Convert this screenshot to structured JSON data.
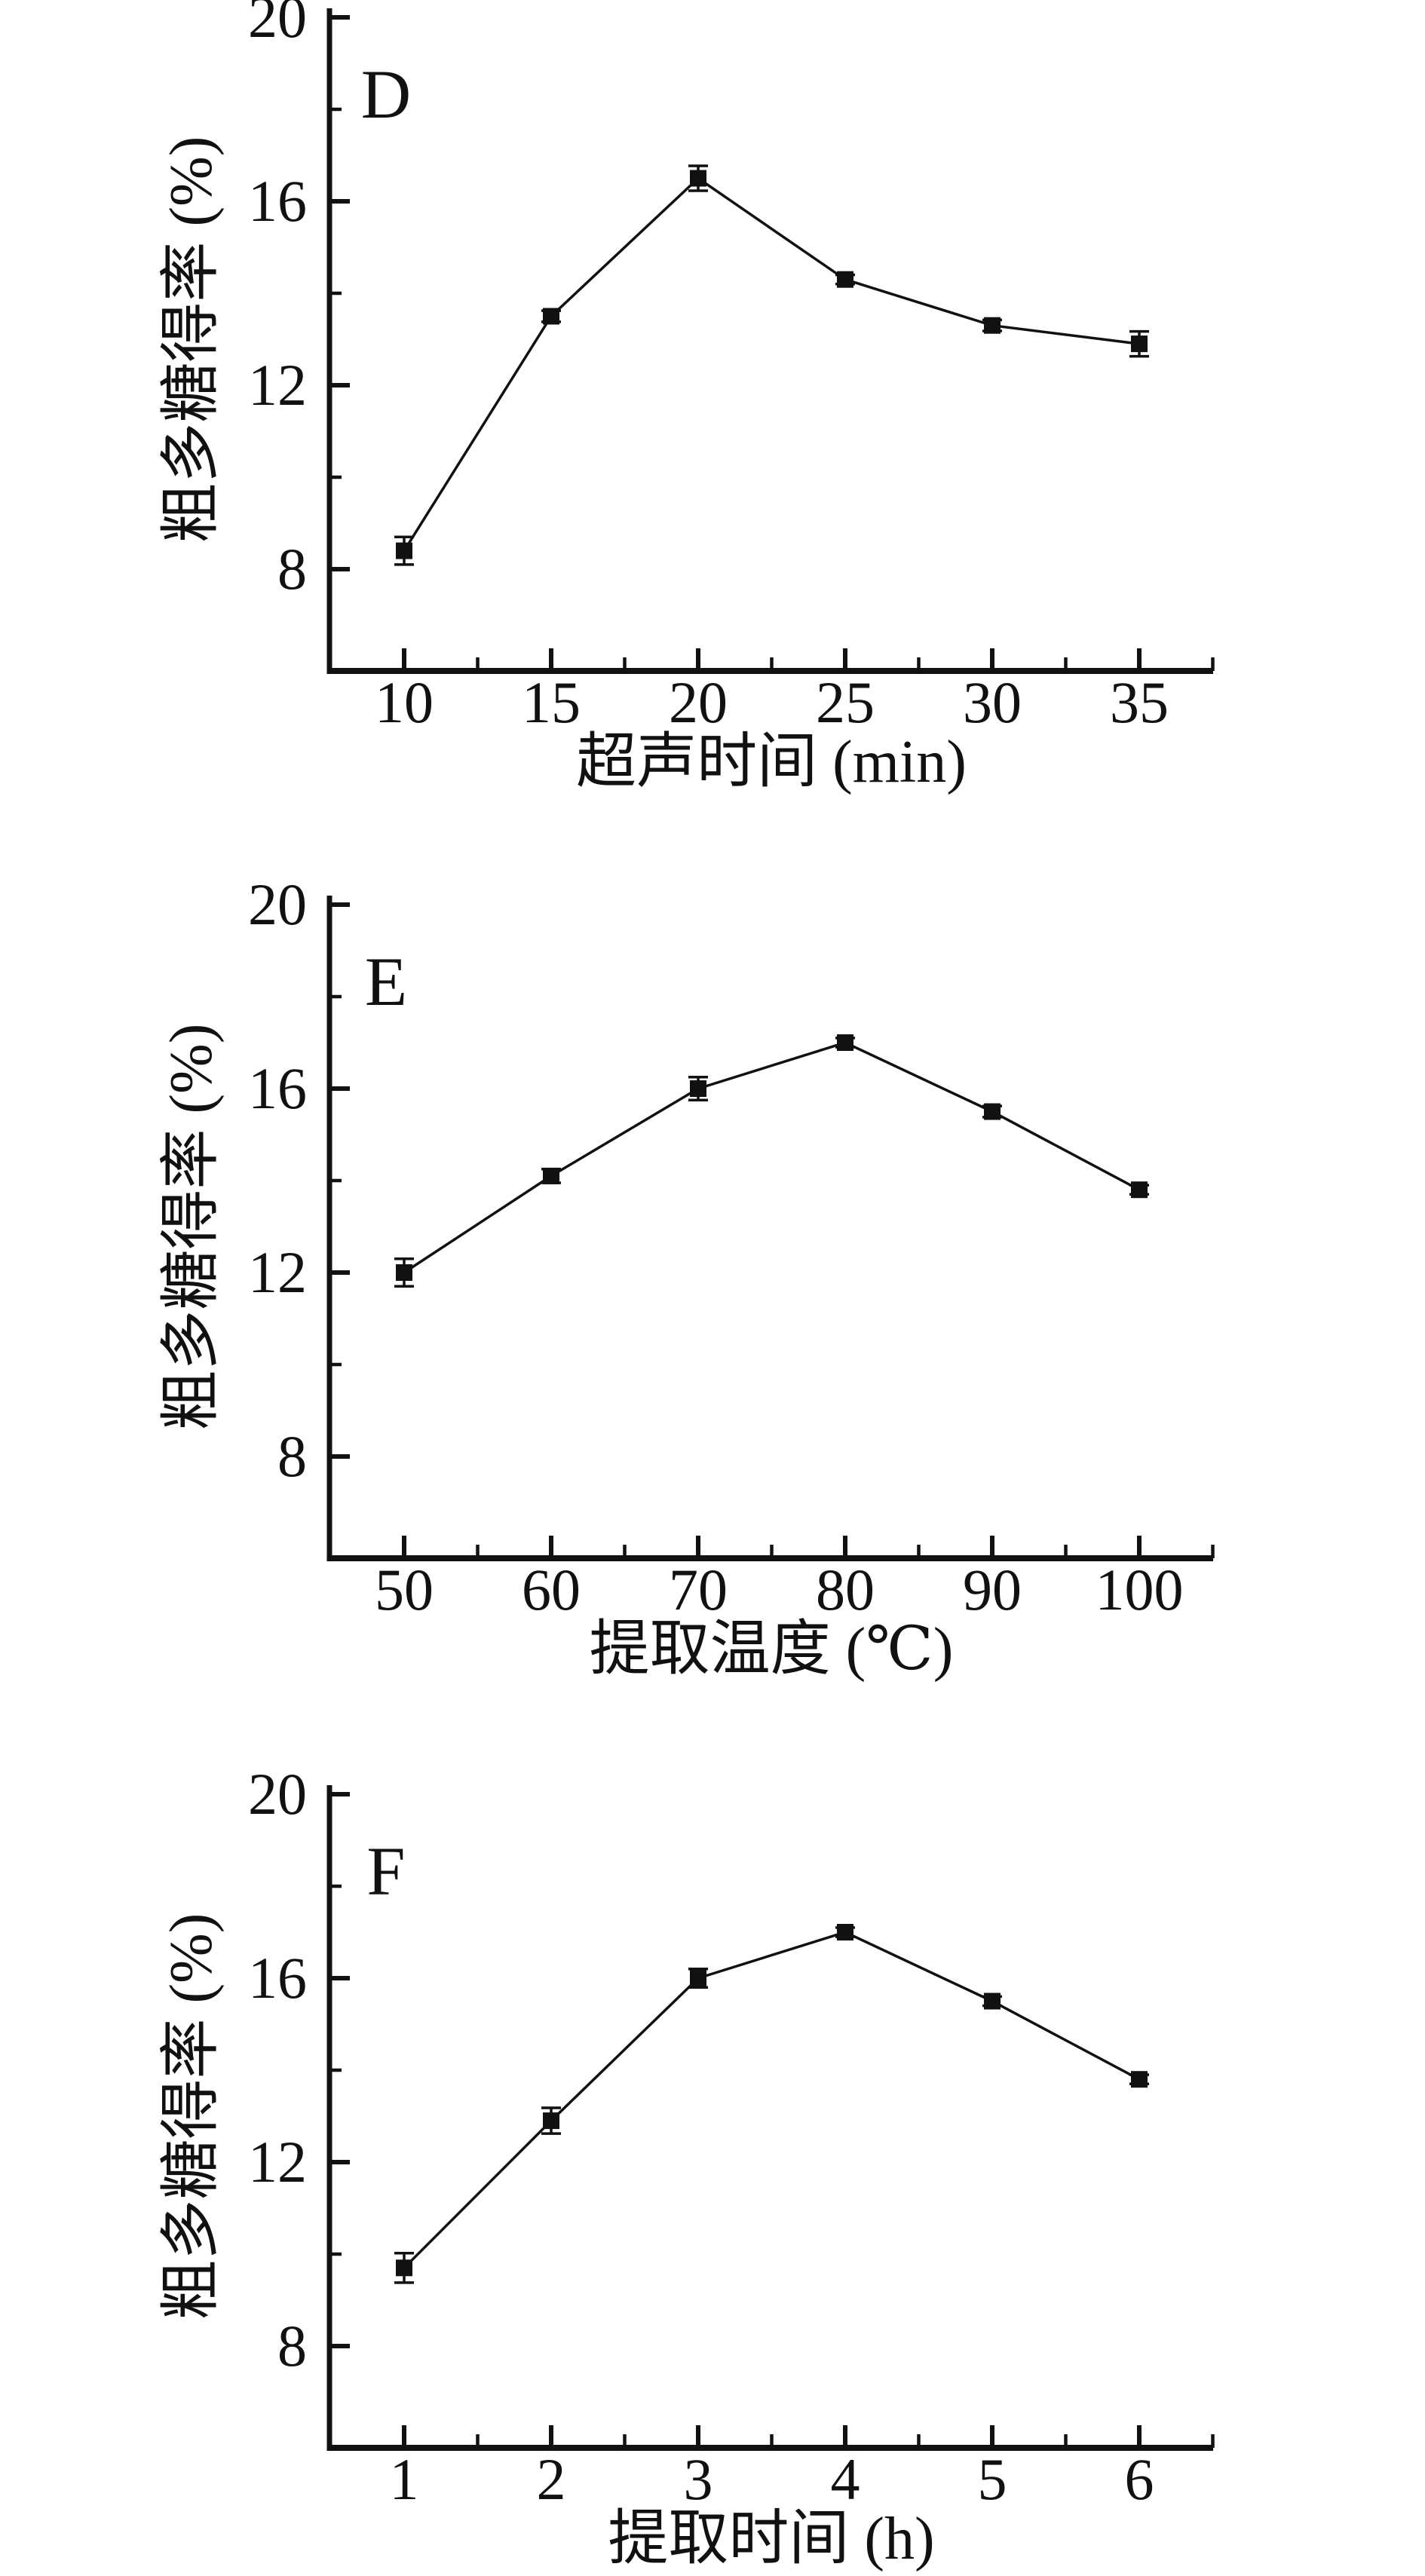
{
  "figure": {
    "background": "#ffffff",
    "ink_color": "#111111",
    "marker_shape": "square"
  },
  "chart_data": [
    {
      "type": "line",
      "panel_label": "D",
      "title": "",
      "xlabel": "超声时间 (min)",
      "ylabel": "粗多糖得率 (%)",
      "x": [
        10,
        15,
        20,
        25,
        30,
        35
      ],
      "values": [
        8.4,
        13.5,
        16.5,
        14.3,
        13.3,
        12.9
      ],
      "errors": [
        0.3,
        0.12,
        0.27,
        0.1,
        0.12,
        0.27
      ],
      "y_major_ticks": [
        8,
        12,
        16,
        20
      ],
      "y_minor_ticks": [
        10,
        14,
        18
      ],
      "ylim": [
        5.8,
        20.2
      ],
      "grid": "off",
      "legend": "none",
      "series_name": "粗多糖得率"
    },
    {
      "type": "line",
      "panel_label": "E",
      "title": "",
      "xlabel": "提取温度 (℃)",
      "ylabel": "粗多糖得率 (%)",
      "x": [
        50,
        60,
        70,
        80,
        90,
        100
      ],
      "values": [
        12.0,
        14.1,
        16.0,
        17.0,
        15.5,
        13.8
      ],
      "errors": [
        0.3,
        0.15,
        0.25,
        0.1,
        0.12,
        0.1
      ],
      "y_major_ticks": [
        8,
        12,
        16,
        20
      ],
      "y_minor_ticks": [
        10,
        14,
        18
      ],
      "ylim": [
        5.8,
        20.2
      ],
      "grid": "off",
      "legend": "none",
      "series_name": "粗多糖得率"
    },
    {
      "type": "line",
      "panel_label": "F",
      "title": "",
      "xlabel": "提取时间 (h)",
      "ylabel": "粗多糖得率 (%)",
      "x": [
        1,
        2,
        3,
        4,
        5,
        6
      ],
      "values": [
        9.7,
        12.9,
        16.0,
        17.0,
        15.5,
        13.8
      ],
      "errors": [
        0.32,
        0.28,
        0.2,
        0.1,
        0.1,
        0.1
      ],
      "y_major_ticks": [
        8,
        12,
        16,
        20
      ],
      "y_minor_ticks": [
        10,
        14,
        18
      ],
      "ylim": [
        5.8,
        20.2
      ],
      "grid": "off",
      "legend": "none",
      "series_name": "粗多糖得率"
    }
  ]
}
